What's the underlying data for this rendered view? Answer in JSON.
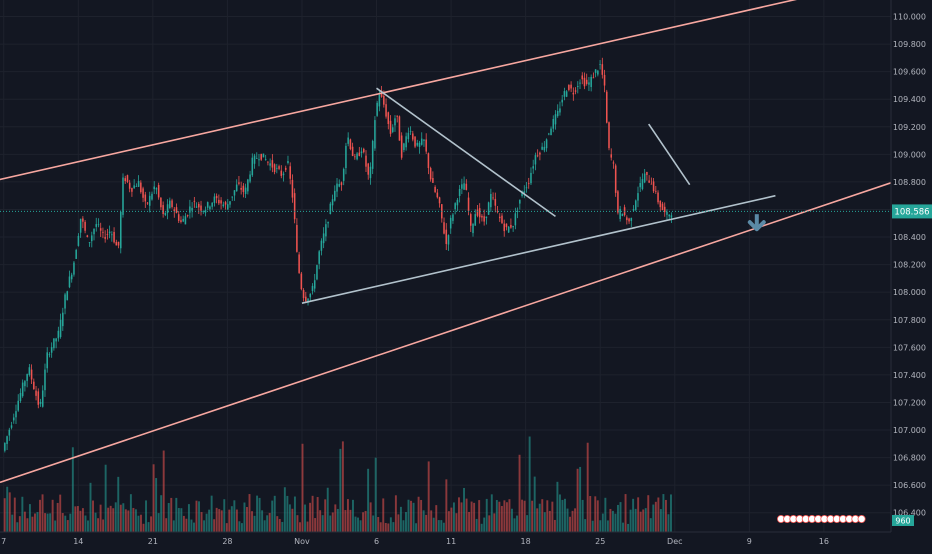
{
  "colors": {
    "background": "#131722",
    "up": "#26a69a",
    "down": "#ef5350",
    "channel_line": "#f7a7a0",
    "pattern_line": "#b2c2cc",
    "arrow": "#5b8aa6",
    "price_tag": "#26a69a",
    "axis_text": "#b2b5be",
    "grid": "#1e222d"
  },
  "chart_data": {
    "type": "line",
    "title": "",
    "xlabel": "",
    "ylabel": "",
    "ylim": [
      106.26,
      110.12
    ],
    "yticks": [
      "110.000",
      "109.800",
      "109.600",
      "109.400",
      "109.200",
      "109.000",
      "108.800",
      "108.600",
      "108.400",
      "108.200",
      "108.000",
      "107.800",
      "107.600",
      "107.400",
      "107.200",
      "107.000",
      "106.800",
      "106.600",
      "106.400"
    ],
    "ytick_values": [
      110.0,
      109.8,
      109.6,
      109.4,
      109.2,
      109.0,
      108.8,
      108.6,
      108.4,
      108.2,
      108.0,
      107.8,
      107.6,
      107.4,
      107.2,
      107.0,
      106.8,
      106.6,
      106.4
    ],
    "xticks": [
      "7",
      "14",
      "21",
      "28",
      "Nov",
      "6",
      "11",
      "18",
      "25",
      "Dec",
      "9",
      "16"
    ],
    "xtick_values": [
      0,
      1,
      2,
      3,
      4,
      5,
      6,
      7,
      8,
      9,
      10,
      11
    ],
    "xlim": [
      -0.05,
      11.9
    ],
    "last_price": 108.586,
    "last_price_label": "108.586",
    "volume_label": "960",
    "grid": true,
    "legend": "none",
    "price_path": [
      {
        "x": 0.0,
        "y": 106.85
      },
      {
        "x": 0.2,
        "y": 107.2
      },
      {
        "x": 0.35,
        "y": 107.45
      },
      {
        "x": 0.5,
        "y": 107.15
      },
      {
        "x": 0.6,
        "y": 107.55
      },
      {
        "x": 0.75,
        "y": 107.7
      },
      {
        "x": 0.85,
        "y": 108.0
      },
      {
        "x": 0.95,
        "y": 108.2
      },
      {
        "x": 1.05,
        "y": 108.55
      },
      {
        "x": 1.15,
        "y": 108.35
      },
      {
        "x": 1.25,
        "y": 108.5
      },
      {
        "x": 1.35,
        "y": 108.4
      },
      {
        "x": 1.45,
        "y": 108.45
      },
      {
        "x": 1.55,
        "y": 108.3
      },
      {
        "x": 1.62,
        "y": 108.85
      },
      {
        "x": 1.72,
        "y": 108.75
      },
      {
        "x": 1.82,
        "y": 108.8
      },
      {
        "x": 1.92,
        "y": 108.62
      },
      {
        "x": 2.05,
        "y": 108.78
      },
      {
        "x": 2.15,
        "y": 108.55
      },
      {
        "x": 2.25,
        "y": 108.65
      },
      {
        "x": 2.4,
        "y": 108.5
      },
      {
        "x": 2.55,
        "y": 108.65
      },
      {
        "x": 2.7,
        "y": 108.6
      },
      {
        "x": 2.85,
        "y": 108.68
      },
      {
        "x": 3.0,
        "y": 108.62
      },
      {
        "x": 3.15,
        "y": 108.78
      },
      {
        "x": 3.25,
        "y": 108.72
      },
      {
        "x": 3.35,
        "y": 108.95
      },
      {
        "x": 3.45,
        "y": 109.0
      },
      {
        "x": 3.55,
        "y": 108.95
      },
      {
        "x": 3.65,
        "y": 108.9
      },
      {
        "x": 3.75,
        "y": 108.85
      },
      {
        "x": 3.82,
        "y": 108.95
      },
      {
        "x": 3.9,
        "y": 108.65
      },
      {
        "x": 3.95,
        "y": 108.25
      },
      {
        "x": 4.0,
        "y": 108.05
      },
      {
        "x": 4.05,
        "y": 107.95
      },
      {
        "x": 4.15,
        "y": 108.0
      },
      {
        "x": 4.25,
        "y": 108.3
      },
      {
        "x": 4.35,
        "y": 108.5
      },
      {
        "x": 4.45,
        "y": 108.75
      },
      {
        "x": 4.55,
        "y": 108.8
      },
      {
        "x": 4.62,
        "y": 109.15
      },
      {
        "x": 4.72,
        "y": 108.95
      },
      {
        "x": 4.82,
        "y": 109.05
      },
      {
        "x": 4.92,
        "y": 108.8
      },
      {
        "x": 5.0,
        "y": 109.3
      },
      {
        "x": 5.05,
        "y": 109.45
      },
      {
        "x": 5.12,
        "y": 109.35
      },
      {
        "x": 5.2,
        "y": 109.15
      },
      {
        "x": 5.28,
        "y": 109.3
      },
      {
        "x": 5.35,
        "y": 109.0
      },
      {
        "x": 5.45,
        "y": 109.2
      },
      {
        "x": 5.55,
        "y": 109.05
      },
      {
        "x": 5.65,
        "y": 109.1
      },
      {
        "x": 5.75,
        "y": 108.8
      },
      {
        "x": 5.85,
        "y": 108.65
      },
      {
        "x": 5.95,
        "y": 108.35
      },
      {
        "x": 6.0,
        "y": 108.5
      },
      {
        "x": 6.1,
        "y": 108.7
      },
      {
        "x": 6.2,
        "y": 108.8
      },
      {
        "x": 6.28,
        "y": 108.45
      },
      {
        "x": 6.35,
        "y": 108.6
      },
      {
        "x": 6.45,
        "y": 108.5
      },
      {
        "x": 6.55,
        "y": 108.7
      },
      {
        "x": 6.65,
        "y": 108.55
      },
      {
        "x": 6.75,
        "y": 108.45
      },
      {
        "x": 6.85,
        "y": 108.5
      },
      {
        "x": 6.95,
        "y": 108.7
      },
      {
        "x": 7.05,
        "y": 108.8
      },
      {
        "x": 7.15,
        "y": 109.0
      },
      {
        "x": 7.25,
        "y": 109.05
      },
      {
        "x": 7.35,
        "y": 109.2
      },
      {
        "x": 7.45,
        "y": 109.3
      },
      {
        "x": 7.5,
        "y": 109.4
      },
      {
        "x": 7.58,
        "y": 109.5
      },
      {
        "x": 7.65,
        "y": 109.45
      },
      {
        "x": 7.75,
        "y": 109.55
      },
      {
        "x": 7.85,
        "y": 109.5
      },
      {
        "x": 7.95,
        "y": 109.6
      },
      {
        "x": 8.02,
        "y": 109.65
      },
      {
        "x": 8.08,
        "y": 109.45
      },
      {
        "x": 8.12,
        "y": 109.05
      },
      {
        "x": 8.2,
        "y": 108.9
      },
      {
        "x": 8.25,
        "y": 108.55
      },
      {
        "x": 8.3,
        "y": 108.6
      },
      {
        "x": 8.4,
        "y": 108.5
      },
      {
        "x": 8.5,
        "y": 108.7
      },
      {
        "x": 8.6,
        "y": 108.85
      },
      {
        "x": 8.7,
        "y": 108.8
      },
      {
        "x": 8.8,
        "y": 108.65
      },
      {
        "x": 8.9,
        "y": 108.55
      },
      {
        "x": 8.97,
        "y": 108.586
      }
    ],
    "volume_bars": {
      "count": 265,
      "max_value": 1.0
    },
    "trend_lines": [
      {
        "name": "channel-upper",
        "x1": -0.2,
        "y1": 108.8,
        "x2": 11.0,
        "y2": 110.17
      },
      {
        "name": "channel-lower",
        "x1": -0.05,
        "y1": 106.62,
        "x2": 12.1,
        "y2": 108.83
      },
      {
        "name": "triangle-upper",
        "x1": 5.0,
        "y1": 109.48,
        "x2": 7.4,
        "y2": 108.55
      },
      {
        "name": "triangle-lower",
        "x1": 4.0,
        "y1": 107.92,
        "x2": 10.35,
        "y2": 108.7
      },
      {
        "name": "wedge-upper",
        "x1": 8.65,
        "y1": 109.22,
        "x2": 9.2,
        "y2": 108.78
      }
    ],
    "arrow": {
      "direction": "down",
      "x": 10.1,
      "y": 108.45
    }
  }
}
